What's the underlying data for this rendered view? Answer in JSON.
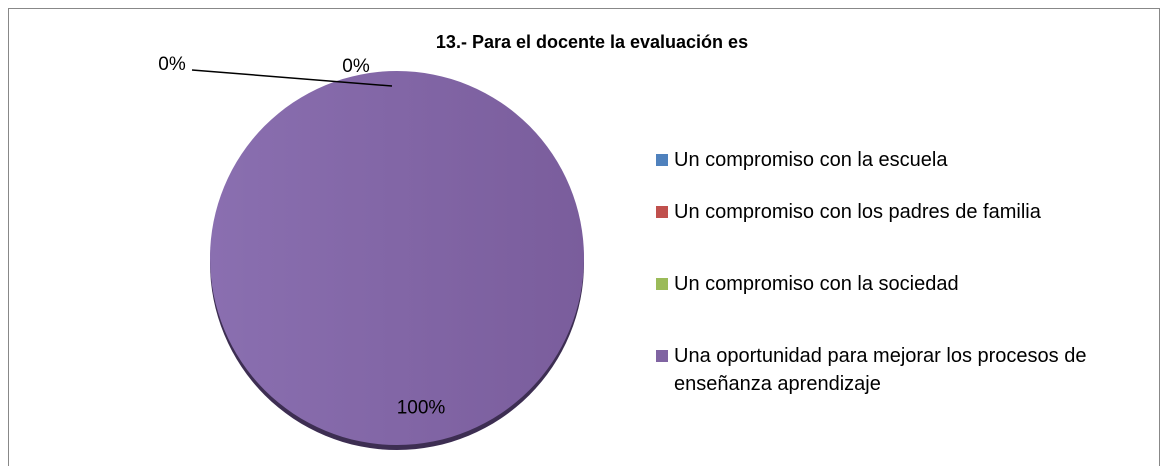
{
  "chart_data": {
    "type": "pie",
    "title": "13.- Para el docente la evaluación es",
    "categories": [
      "Un compromiso con la escuela",
      "Un compromiso con los padres de familia",
      "Un compromiso con la sociedad",
      "Una oportunidad para mejorar los procesos de enseñanza aprendizaje"
    ],
    "values": [
      0,
      0,
      0,
      100
    ],
    "value_labels": [
      "0%",
      "0%",
      null,
      "100%"
    ],
    "colors": [
      "#4f81bd",
      "#c0504d",
      "#9bbb59",
      "#8064a2"
    ],
    "legend": "right"
  }
}
